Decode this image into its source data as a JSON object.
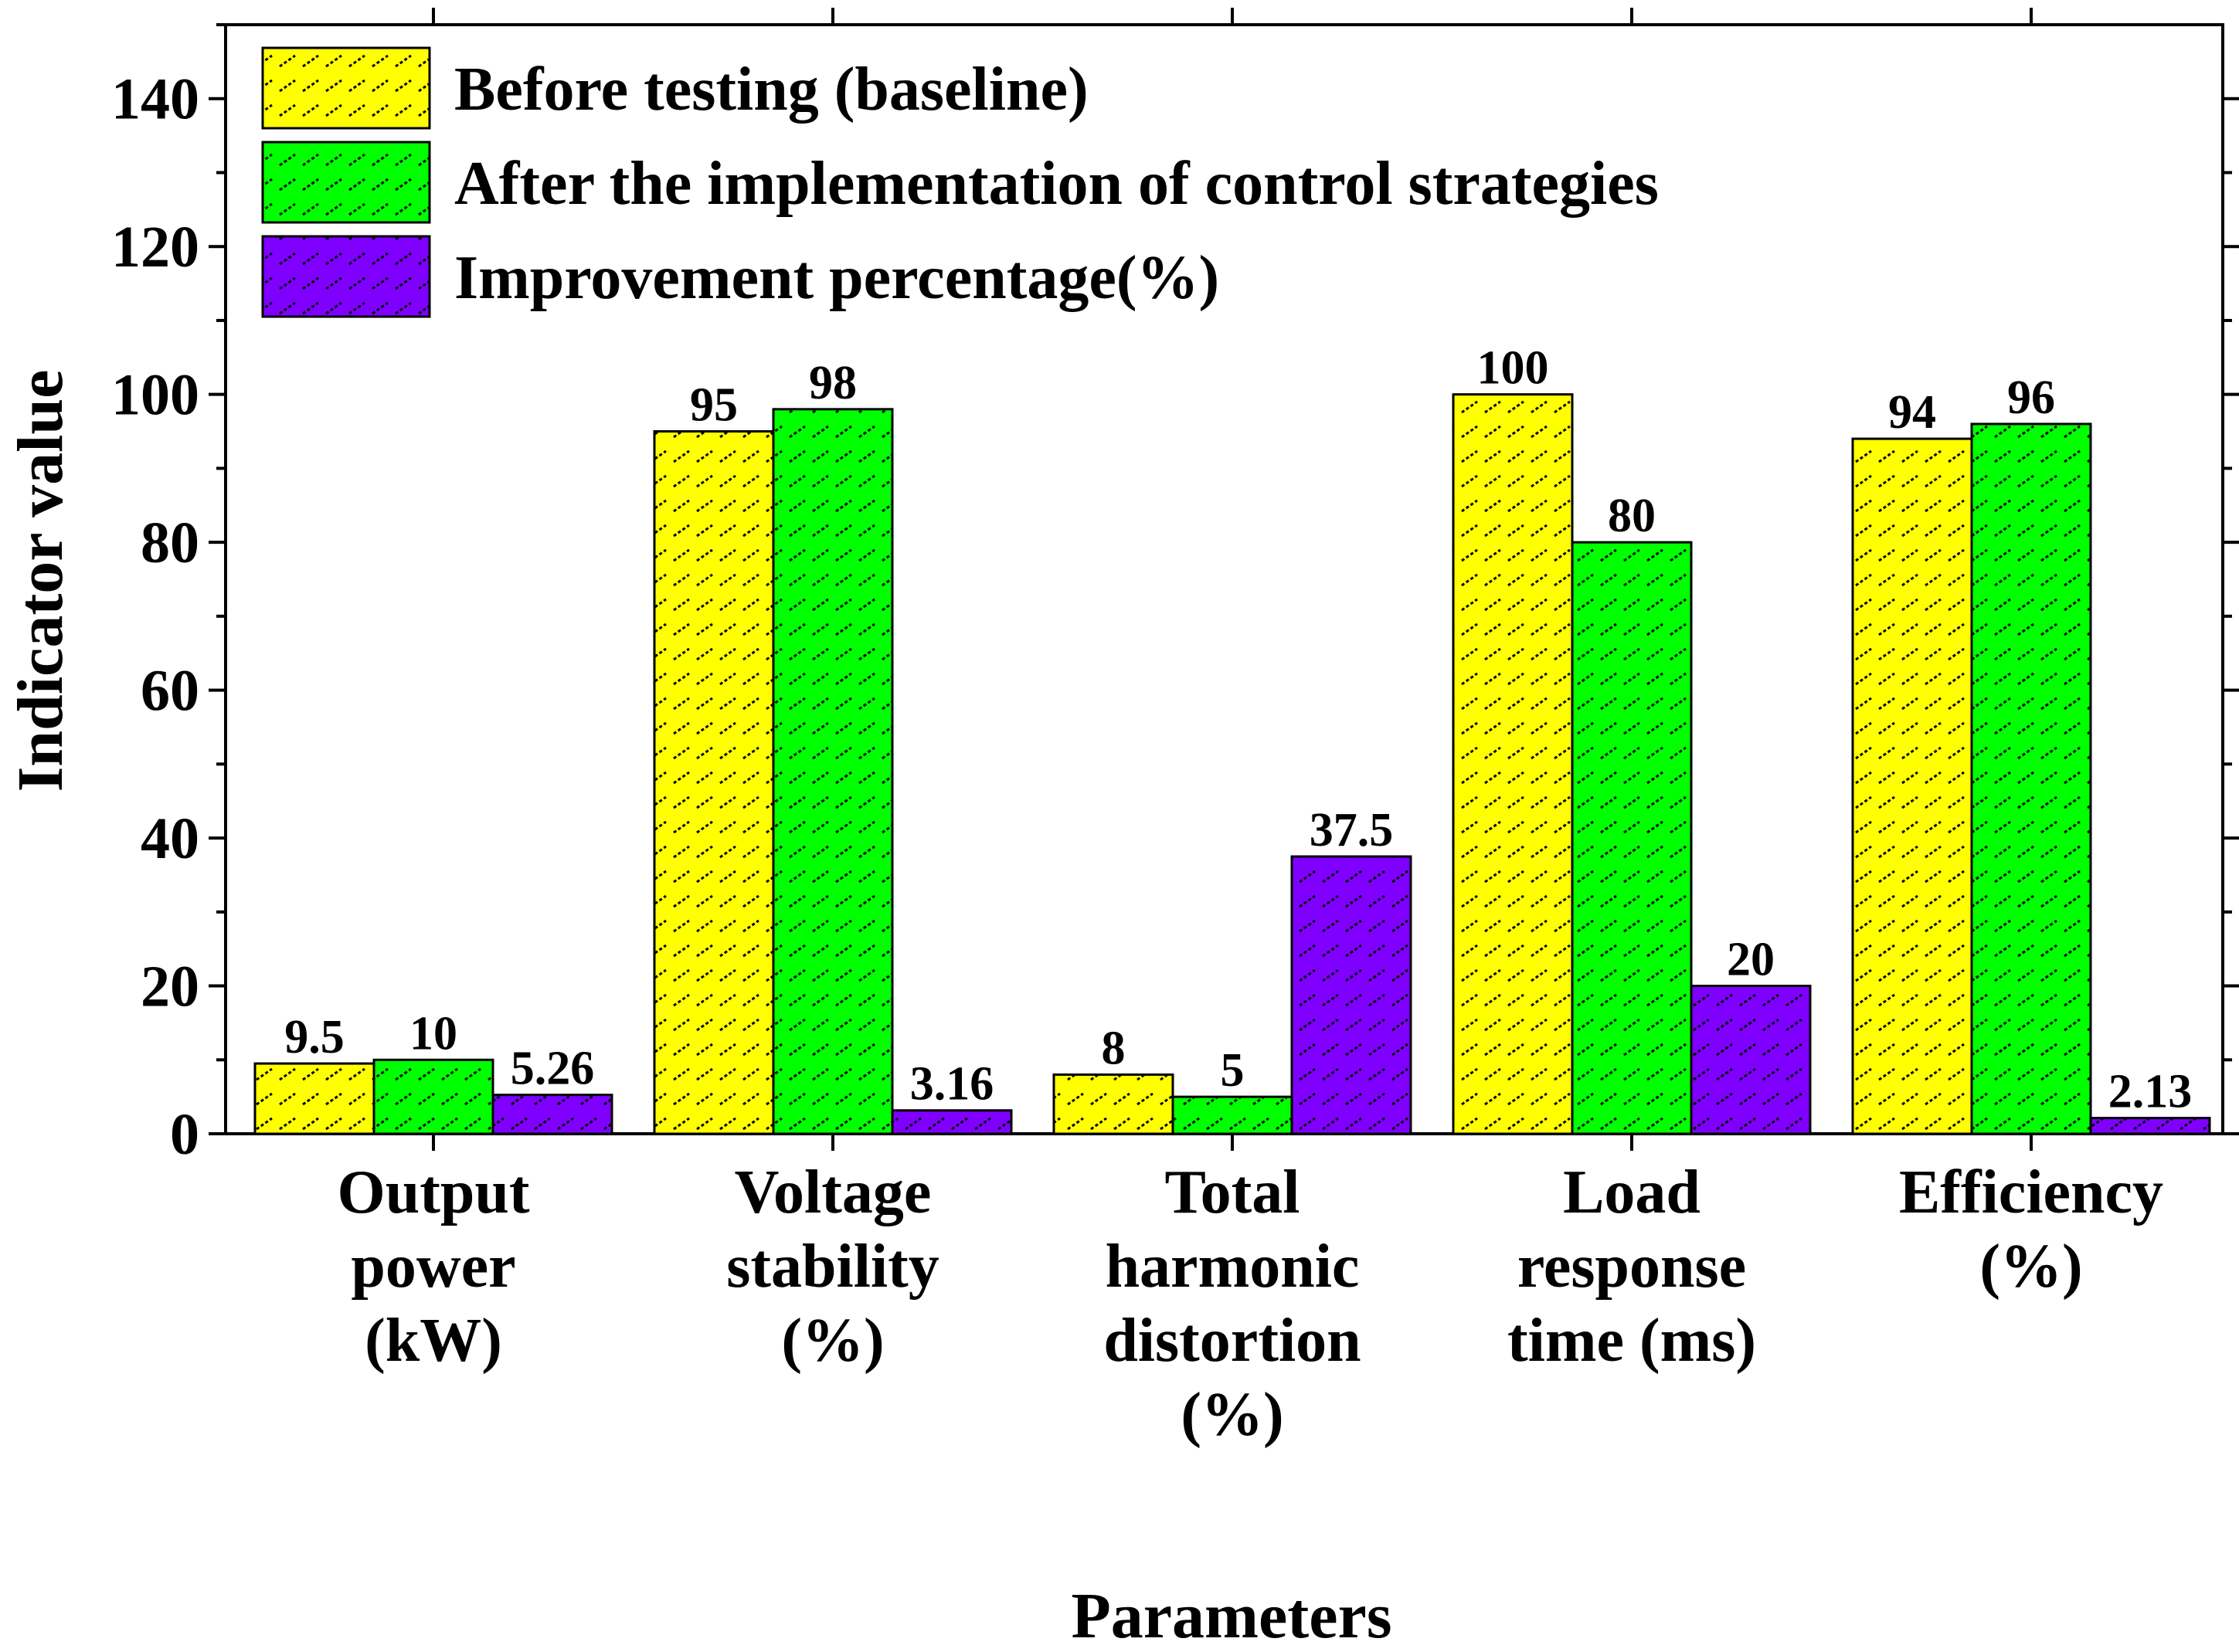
{
  "chart_data": {
    "type": "bar",
    "title": "",
    "xlabel": "Parameters",
    "ylabel": "Indicator value",
    "ylim": [
      0,
      150
    ],
    "yticks": [
      0,
      20,
      40,
      60,
      80,
      100,
      120,
      140
    ],
    "grid": false,
    "legend_position": "top-left",
    "categories": [
      [
        "Output",
        "power",
        "(kW)"
      ],
      [
        "Voltage",
        "stability",
        "(%)"
      ],
      [
        "Total",
        "harmonic",
        "distortion",
        "(%)"
      ],
      [
        "Load",
        "response",
        "time (ms)"
      ],
      [
        "Efficiency",
        "(%)"
      ]
    ],
    "series": [
      {
        "name": "Before testing (baseline)",
        "color": "#ffff00",
        "values": [
          9.5,
          95,
          8,
          100,
          94
        ],
        "labels": [
          "9.5",
          "95",
          "8",
          "100",
          "94"
        ]
      },
      {
        "name": "After the implementation of control strategies",
        "color": "#00ff00",
        "values": [
          10,
          98,
          5,
          80,
          96
        ],
        "labels": [
          "10",
          "98",
          "5",
          "80",
          "96"
        ]
      },
      {
        "name": "Improvement percentage(%)",
        "color": "#8000ff",
        "values": [
          5.26,
          3.16,
          37.5,
          20,
          2.13
        ],
        "labels": [
          "5.26",
          "3.16",
          "37.5",
          "20",
          "2.13"
        ]
      }
    ]
  }
}
